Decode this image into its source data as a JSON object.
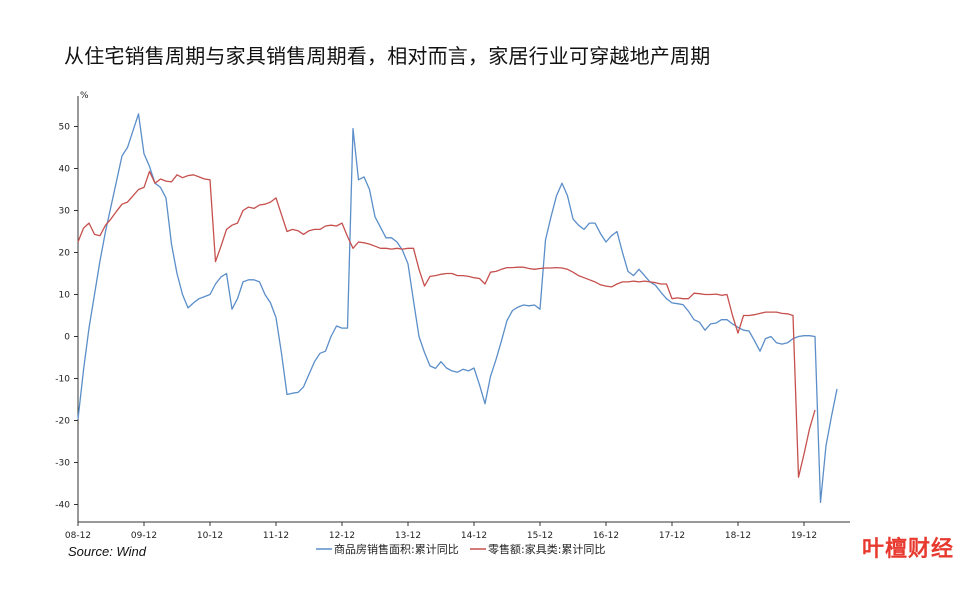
{
  "title": "从住宅销售周期与家具销售周期看，相对而言，家居行业可穿越地产周期",
  "source": "Source:  Wind",
  "watermark": "叶檀财经",
  "chart_data": {
    "type": "line",
    "title": "从住宅销售周期与家具销售周期看，相对而言，家居行业可穿越地产周期",
    "ylabel": "%",
    "xlabel": "",
    "ylim": [
      -45,
      58
    ],
    "yticks": [
      50,
      40,
      30,
      20,
      10,
      0,
      -10,
      -20,
      -30,
      -40
    ],
    "x_start": "08-12",
    "x_tick_labels": [
      "08-12",
      "09-12",
      "10-12",
      "11-12",
      "12-12",
      "13-12",
      "14-12",
      "15-12",
      "16-12",
      "17-12",
      "18-12",
      "19-12"
    ],
    "grid": false,
    "legend_position": "bottom",
    "series": [
      {
        "name": "商品房销售面积:累计同比",
        "color": "#5b8ec9",
        "values": [
          -19.7,
          -8,
          2,
          10,
          18,
          25,
          31,
          37,
          43,
          45,
          49,
          53,
          43.5,
          40.5,
          36.5,
          35.5,
          33,
          22,
          15,
          10,
          6.8,
          8,
          9,
          9.5,
          10,
          12.5,
          14.2,
          15,
          6.5,
          9,
          13,
          13.5,
          13.5,
          13,
          10,
          8,
          4.5,
          -4,
          -13.8,
          -13.5,
          -13.3,
          -12,
          -9,
          -6,
          -4,
          -3.5,
          0,
          2.5,
          2,
          2,
          49.5,
          37.3,
          38,
          35,
          28.5,
          26,
          23.5,
          23.5,
          22.5,
          20.5,
          17.3,
          8.5,
          0,
          -3.8,
          -7,
          -7.6,
          -6,
          -7.5,
          -8.2,
          -8.5,
          -7.8,
          -8.2,
          -7.5,
          -11.5,
          -16,
          -9.5,
          -5.5,
          -1,
          3.8,
          6.2,
          7,
          7.5,
          7.3,
          7.5,
          6.5,
          23,
          28.5,
          33.5,
          36.5,
          33.5,
          28,
          26.5,
          25.5,
          27,
          27,
          24.5,
          22.5,
          24,
          25,
          20,
          15.5,
          14.5,
          16,
          14.5,
          13,
          12.2,
          10.5,
          9,
          8,
          7.8,
          7.6,
          6,
          4,
          3.4,
          1.5,
          3,
          3.2,
          4,
          4,
          3,
          2.2,
          1.5,
          1.3,
          -1,
          -3.5,
          -0.5,
          0,
          -1.5,
          -1.8,
          -1.5,
          -0.5,
          0,
          0.2,
          0.2,
          0,
          -39.5,
          -26,
          -19,
          -12.5
        ]
      },
      {
        "name": "零售额:家具类:累计同比",
        "color": "#c5504e",
        "values": [
          22.5,
          25.8,
          27,
          24.3,
          24,
          26.5,
          28,
          29.8,
          31.5,
          32,
          33.5,
          35,
          35.5,
          39.3,
          36.5,
          37.5,
          37,
          36.8,
          38.5,
          37.8,
          38.3,
          38.5,
          38,
          37.5,
          37.3,
          17.8,
          21.5,
          25.5,
          26.5,
          27,
          30,
          30.8,
          30.5,
          31.3,
          31.5,
          32,
          33,
          29,
          25,
          25.5,
          25.2,
          24.3,
          25.2,
          25.5,
          25.5,
          26.3,
          26.5,
          26.3,
          27,
          23.8,
          21,
          22.5,
          22.3,
          22,
          21.5,
          21,
          21,
          20.8,
          21,
          20.8,
          21,
          21,
          16,
          12,
          14.3,
          14.5,
          14.8,
          15,
          15,
          14.5,
          14.5,
          14.3,
          14,
          13.8,
          12.5,
          15.3,
          15.5,
          16,
          16.4,
          16.4,
          16.5,
          16.5,
          16.2,
          16,
          16.2,
          16.3,
          16.3,
          16.4,
          16.3,
          16,
          15.3,
          14.5,
          14,
          13.5,
          13,
          12.3,
          12,
          11.8,
          12.5,
          13,
          13,
          13.2,
          13,
          13.2,
          13,
          12.8,
          12.5,
          12.5,
          9,
          9.2,
          9,
          9,
          10.3,
          10.2,
          10,
          10,
          10.1,
          9.8,
          10,
          5,
          0.8,
          5,
          5,
          5.2,
          5.5,
          5.8,
          5.8,
          5.8,
          5.5,
          5.4,
          5,
          -33.5,
          -28,
          -22,
          -17.5
        ]
      }
    ]
  }
}
